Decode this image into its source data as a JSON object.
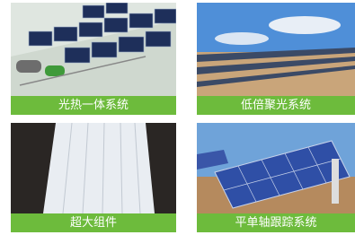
{
  "tiles": [
    {
      "caption": "光热一体系统"
    },
    {
      "caption": "低倍聚光系统"
    },
    {
      "caption": "超大组件"
    },
    {
      "caption": "平单轴跟踪系统"
    }
  ]
}
